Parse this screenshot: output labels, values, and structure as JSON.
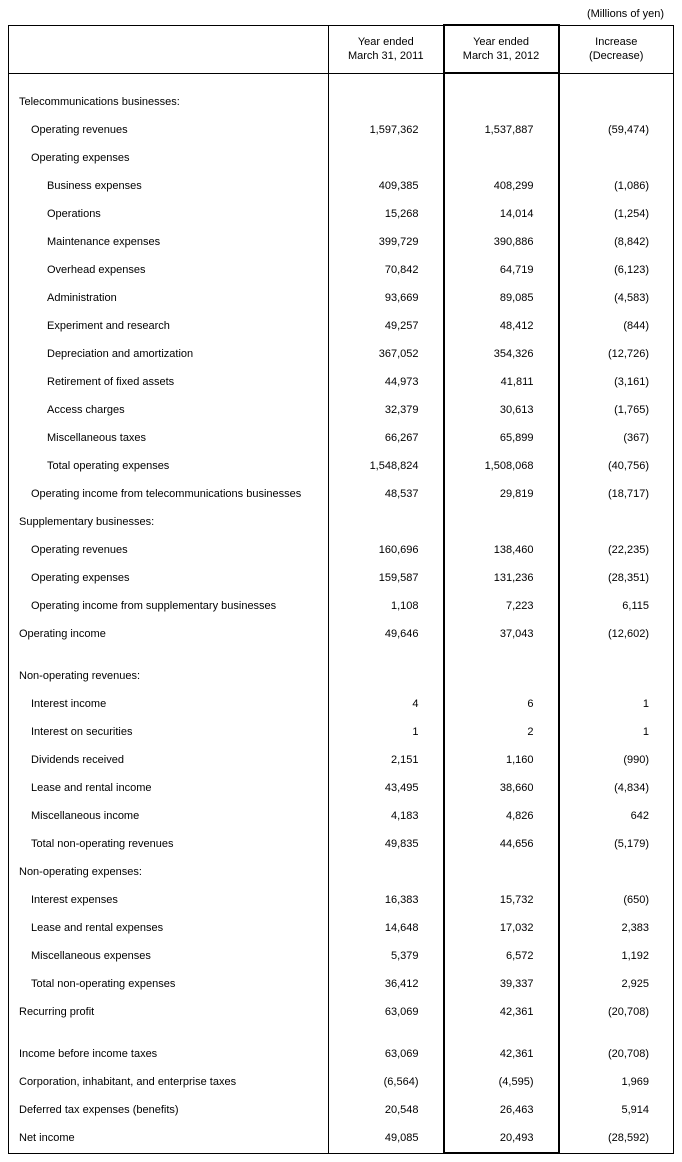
{
  "unit_label": "(Millions of yen)",
  "columns": {
    "c1": "Year ended\nMarch 31, 2011",
    "c2": "Year ended\nMarch 31, 2012",
    "c3": "Increase\n(Decrease)"
  },
  "rows": [
    {
      "type": "spacer"
    },
    {
      "label": "Telecommunications businesses:",
      "indent": 0
    },
    {
      "label": "Operating revenues",
      "indent": 1,
      "v1": "1,597,362",
      "v2": "1,537,887",
      "v3": "(59,474)"
    },
    {
      "label": "Operating expenses",
      "indent": 1
    },
    {
      "label": "Business expenses",
      "indent": 2,
      "v1": "409,385",
      "v2": "408,299",
      "v3": "(1,086)"
    },
    {
      "label": "Operations",
      "indent": 2,
      "v1": "15,268",
      "v2": "14,014",
      "v3": "(1,254)"
    },
    {
      "label": "Maintenance expenses",
      "indent": 2,
      "v1": "399,729",
      "v2": "390,886",
      "v3": "(8,842)"
    },
    {
      "label": "Overhead expenses",
      "indent": 2,
      "v1": "70,842",
      "v2": "64,719",
      "v3": "(6,123)"
    },
    {
      "label": "Administration",
      "indent": 2,
      "v1": "93,669",
      "v2": "89,085",
      "v3": "(4,583)"
    },
    {
      "label": "Experiment and research",
      "indent": 2,
      "v1": "49,257",
      "v2": "48,412",
      "v3": "(844)"
    },
    {
      "label": "Depreciation and amortization",
      "indent": 2,
      "v1": "367,052",
      "v2": "354,326",
      "v3": "(12,726)"
    },
    {
      "label": "Retirement of fixed assets",
      "indent": 2,
      "v1": "44,973",
      "v2": "41,811",
      "v3": "(3,161)"
    },
    {
      "label": "Access charges",
      "indent": 2,
      "v1": "32,379",
      "v2": "30,613",
      "v3": "(1,765)"
    },
    {
      "label": "Miscellaneous taxes",
      "indent": 2,
      "v1": "66,267",
      "v2": "65,899",
      "v3": "(367)"
    },
    {
      "label": "Total operating expenses",
      "indent": 2,
      "v1": "1,548,824",
      "v2": "1,508,068",
      "v3": "(40,756)"
    },
    {
      "label": "Operating income from telecommunications businesses",
      "indent": 1,
      "v1": "48,537",
      "v2": "29,819",
      "v3": "(18,717)"
    },
    {
      "label": "Supplementary businesses:",
      "indent": 0
    },
    {
      "label": "Operating revenues",
      "indent": 1,
      "v1": "160,696",
      "v2": "138,460",
      "v3": "(22,235)"
    },
    {
      "label": "Operating expenses",
      "indent": 1,
      "v1": "159,587",
      "v2": "131,236",
      "v3": "(28,351)"
    },
    {
      "label": "Operating income from supplementary businesses",
      "indent": 1,
      "v1": "1,108",
      "v2": "7,223",
      "v3": "6,115"
    },
    {
      "label": "Operating income",
      "indent": 0,
      "v1": "49,646",
      "v2": "37,043",
      "v3": "(12,602)"
    },
    {
      "type": "spacer"
    },
    {
      "label": "Non-operating revenues:",
      "indent": 0
    },
    {
      "label": "Interest income",
      "indent": 1,
      "v1": "4",
      "v2": "6",
      "v3": "1"
    },
    {
      "label": "Interest on securities",
      "indent": 1,
      "v1": "1",
      "v2": "2",
      "v3": "1"
    },
    {
      "label": "Dividends received",
      "indent": 1,
      "v1": "2,151",
      "v2": "1,160",
      "v3": "(990)"
    },
    {
      "label": "Lease and rental income",
      "indent": 1,
      "v1": "43,495",
      "v2": "38,660",
      "v3": "(4,834)"
    },
    {
      "label": "Miscellaneous income",
      "indent": 1,
      "v1": "4,183",
      "v2": "4,826",
      "v3": "642"
    },
    {
      "label": "Total non-operating revenues",
      "indent": 1,
      "v1": "49,835",
      "v2": "44,656",
      "v3": "(5,179)"
    },
    {
      "label": "Non-operating expenses:",
      "indent": 0
    },
    {
      "label": "Interest expenses",
      "indent": 1,
      "v1": "16,383",
      "v2": "15,732",
      "v3": "(650)"
    },
    {
      "label": "Lease and rental expenses",
      "indent": 1,
      "v1": "14,648",
      "v2": "17,032",
      "v3": "2,383"
    },
    {
      "label": "Miscellaneous expenses",
      "indent": 1,
      "v1": "5,379",
      "v2": "6,572",
      "v3": "1,192"
    },
    {
      "label": "Total non-operating expenses",
      "indent": 1,
      "v1": "36,412",
      "v2": "39,337",
      "v3": "2,925"
    },
    {
      "label": "Recurring profit",
      "indent": 0,
      "v1": "63,069",
      "v2": "42,361",
      "v3": "(20,708)"
    },
    {
      "type": "spacer"
    },
    {
      "label": "Income before income taxes",
      "indent": 0,
      "v1": "63,069",
      "v2": "42,361",
      "v3": "(20,708)"
    },
    {
      "label": "Corporation, inhabitant, and enterprise taxes",
      "indent": 0,
      "v1": "(6,564)",
      "v2": "(4,595)",
      "v3": "1,969"
    },
    {
      "label": "Deferred tax expenses (benefits)",
      "indent": 0,
      "v1": "20,548",
      "v2": "26,463",
      "v3": "5,914"
    },
    {
      "label": "Net income",
      "indent": 0,
      "v1": "49,085",
      "v2": "20,493",
      "v3": "(28,592)"
    }
  ]
}
